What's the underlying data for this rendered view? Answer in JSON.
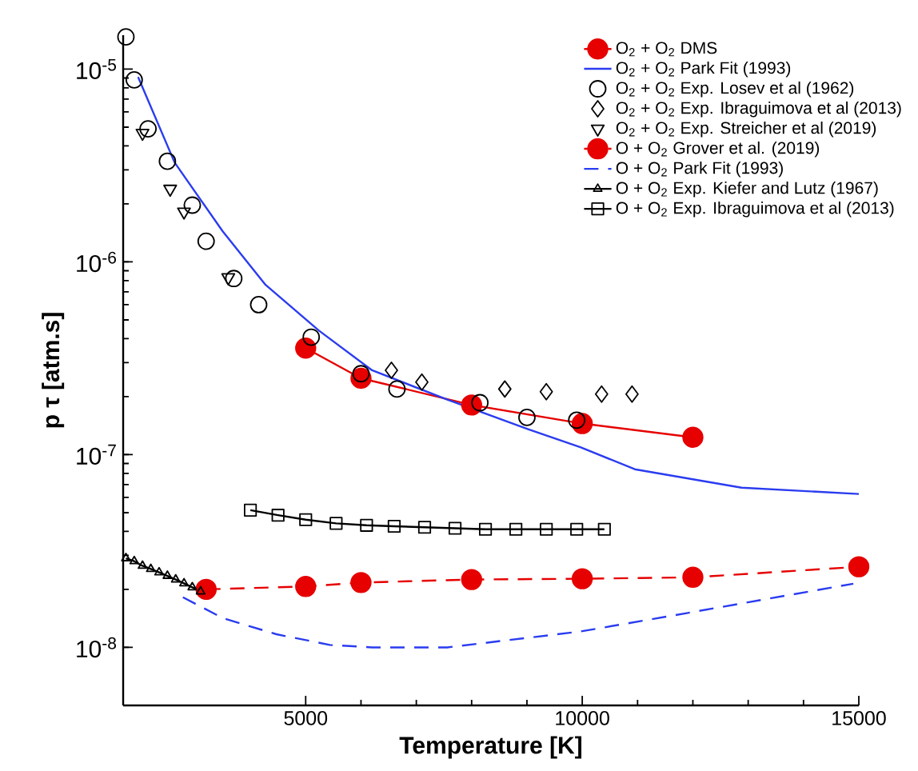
{
  "chart_data": {
    "type": "line",
    "xlabel": "Temperature [K]",
    "ylabel": "p τ [atm.s]",
    "log": "y",
    "xlim": [
      1700,
      15000
    ],
    "xticks": [
      5000,
      10000,
      15000
    ],
    "ylim": [
      5e-09,
      1.5e-05
    ],
    "yticks": [
      {
        "value": 1e-08,
        "label": "10$^{-8}$"
      },
      {
        "value": 1e-07,
        "label": "10$^{-7}$"
      },
      {
        "value": 1e-06,
        "label": "10$^{-6}$"
      },
      {
        "value": 1e-05,
        "label": "10$^{-5}$"
      }
    ],
    "legend": "top right",
    "series": [
      {
        "name": "O$_{2}$ + O$_{2}$ DMS",
        "color": "#e60000",
        "marker": "circle",
        "line_style": "solid",
        "x": [
          5000,
          6000,
          8000,
          10000,
          12000
        ],
        "values": [
          3.57e-07,
          2.49e-07,
          1.81e-07,
          1.45e-07,
          1.23e-07
        ]
      },
      {
        "name": "O$_{2}$ + O$_{2}$ Park Fit (1993)",
        "color": "#2a3cf0",
        "marker": "none",
        "line_style": "solid",
        "x": [
          1970,
          2630,
          3500,
          4275,
          5240,
          6200,
          7560,
          9010,
          9975,
          10950,
          12880,
          15000
        ],
        "values": [
          9.1e-06,
          3.28e-06,
          1.44e-06,
          7.6e-07,
          4.4e-07,
          2.74e-07,
          1.93e-07,
          1.36e-07,
          1.09e-07,
          8.4e-08,
          6.74e-08,
          6.25e-08
        ]
      },
      {
        "name": "O$_{2}$ + O$_{2}$ Exp. Losev et al (1962)",
        "color": "#000000",
        "type": "scatter",
        "marker": "circle",
        "x": [
          1750,
          1900,
          2150,
          2500,
          2950,
          3200,
          3700,
          4150,
          5100,
          6000,
          6650,
          8150,
          9000,
          9900
        ],
        "values": [
          1.47e-05,
          8.8e-06,
          4.9e-06,
          3.33e-06,
          1.97e-06,
          1.28e-06,
          8.2e-07,
          6e-07,
          4.07e-07,
          2.63e-07,
          2.19e-07,
          1.86e-07,
          1.56e-07,
          1.51e-07
        ]
      },
      {
        "name": "O$_{2}$ + O$_{2}$ Exp. Ibraguimova et al (2013)",
        "color": "#000000",
        "type": "scatter",
        "marker": "diamond",
        "x": [
          6550,
          7100,
          8600,
          9350,
          10350,
          10900
        ],
        "values": [
          2.74e-07,
          2.38e-07,
          2.19e-07,
          2.12e-07,
          2.06e-07,
          2.06e-07
        ]
      },
      {
        "name": "O$_{2}$ + O$_{2}$ Exp. Streicher et al (2019)",
        "color": "#000000",
        "type": "scatter",
        "marker": "triangle down",
        "x": [
          2050,
          2550,
          2800,
          3600
        ],
        "values": [
          4.66e-06,
          2.39e-06,
          1.82e-06,
          8.3e-07
        ]
      },
      {
        "name": "O + O$_{2}$ Grover et al. (2019)",
        "color": "#e60000",
        "marker": "circle",
        "line_style": "dashed",
        "x": [
          3200,
          5000,
          6000,
          8000,
          10000,
          12000,
          15000
        ],
        "values": [
          2e-08,
          2.07e-08,
          2.17e-08,
          2.25e-08,
          2.27e-08,
          2.31e-08,
          2.62e-08
        ]
      },
      {
        "name": "O + O$_{2}$ Park Fit (1993)",
        "color": "#2a3cf0",
        "marker": "none",
        "line_style": "dashed",
        "x": [
          2780,
          3500,
          4470,
          5435,
          6200,
          7174,
          7560,
          9975,
          11910,
          14900
        ],
        "values": [
          1.82e-08,
          1.42e-08,
          1.17e-08,
          1.03e-08,
          1e-08,
          1e-08,
          1e-08,
          1.21e-08,
          1.51e-08,
          2.14e-08
        ]
      },
      {
        "name": "O + O$_{2}$ Exp. Kiefer and Lutz (1967)",
        "color": "#000000",
        "marker": "triangle",
        "line_style": "solid",
        "x": [
          1750,
          1900,
          2050,
          2200,
          2350,
          2500,
          2650,
          2800,
          2950,
          3100
        ],
        "values": [
          2.9e-08,
          2.8e-08,
          2.65e-08,
          2.55e-08,
          2.45e-08,
          2.35e-08,
          2.25e-08,
          2.15e-08,
          2.05e-08,
          1.95e-08
        ]
      },
      {
        "name": "O + O$_{2}$ Exp. Ibraguimova et al (2013)",
        "color": "#000000",
        "marker": "square",
        "line_style": "solid",
        "x": [
          4000,
          4500,
          5000,
          5550,
          6100,
          6600,
          7150,
          7700,
          8250,
          8800,
          9350,
          9900,
          10400
        ],
        "values": [
          5.15e-08,
          4.85e-08,
          4.6e-08,
          4.4e-08,
          4.3e-08,
          4.25e-08,
          4.2e-08,
          4.15e-08,
          4.1e-08,
          4.1e-08,
          4.1e-08,
          4.1e-08,
          4.1e-08
        ]
      }
    ]
  }
}
